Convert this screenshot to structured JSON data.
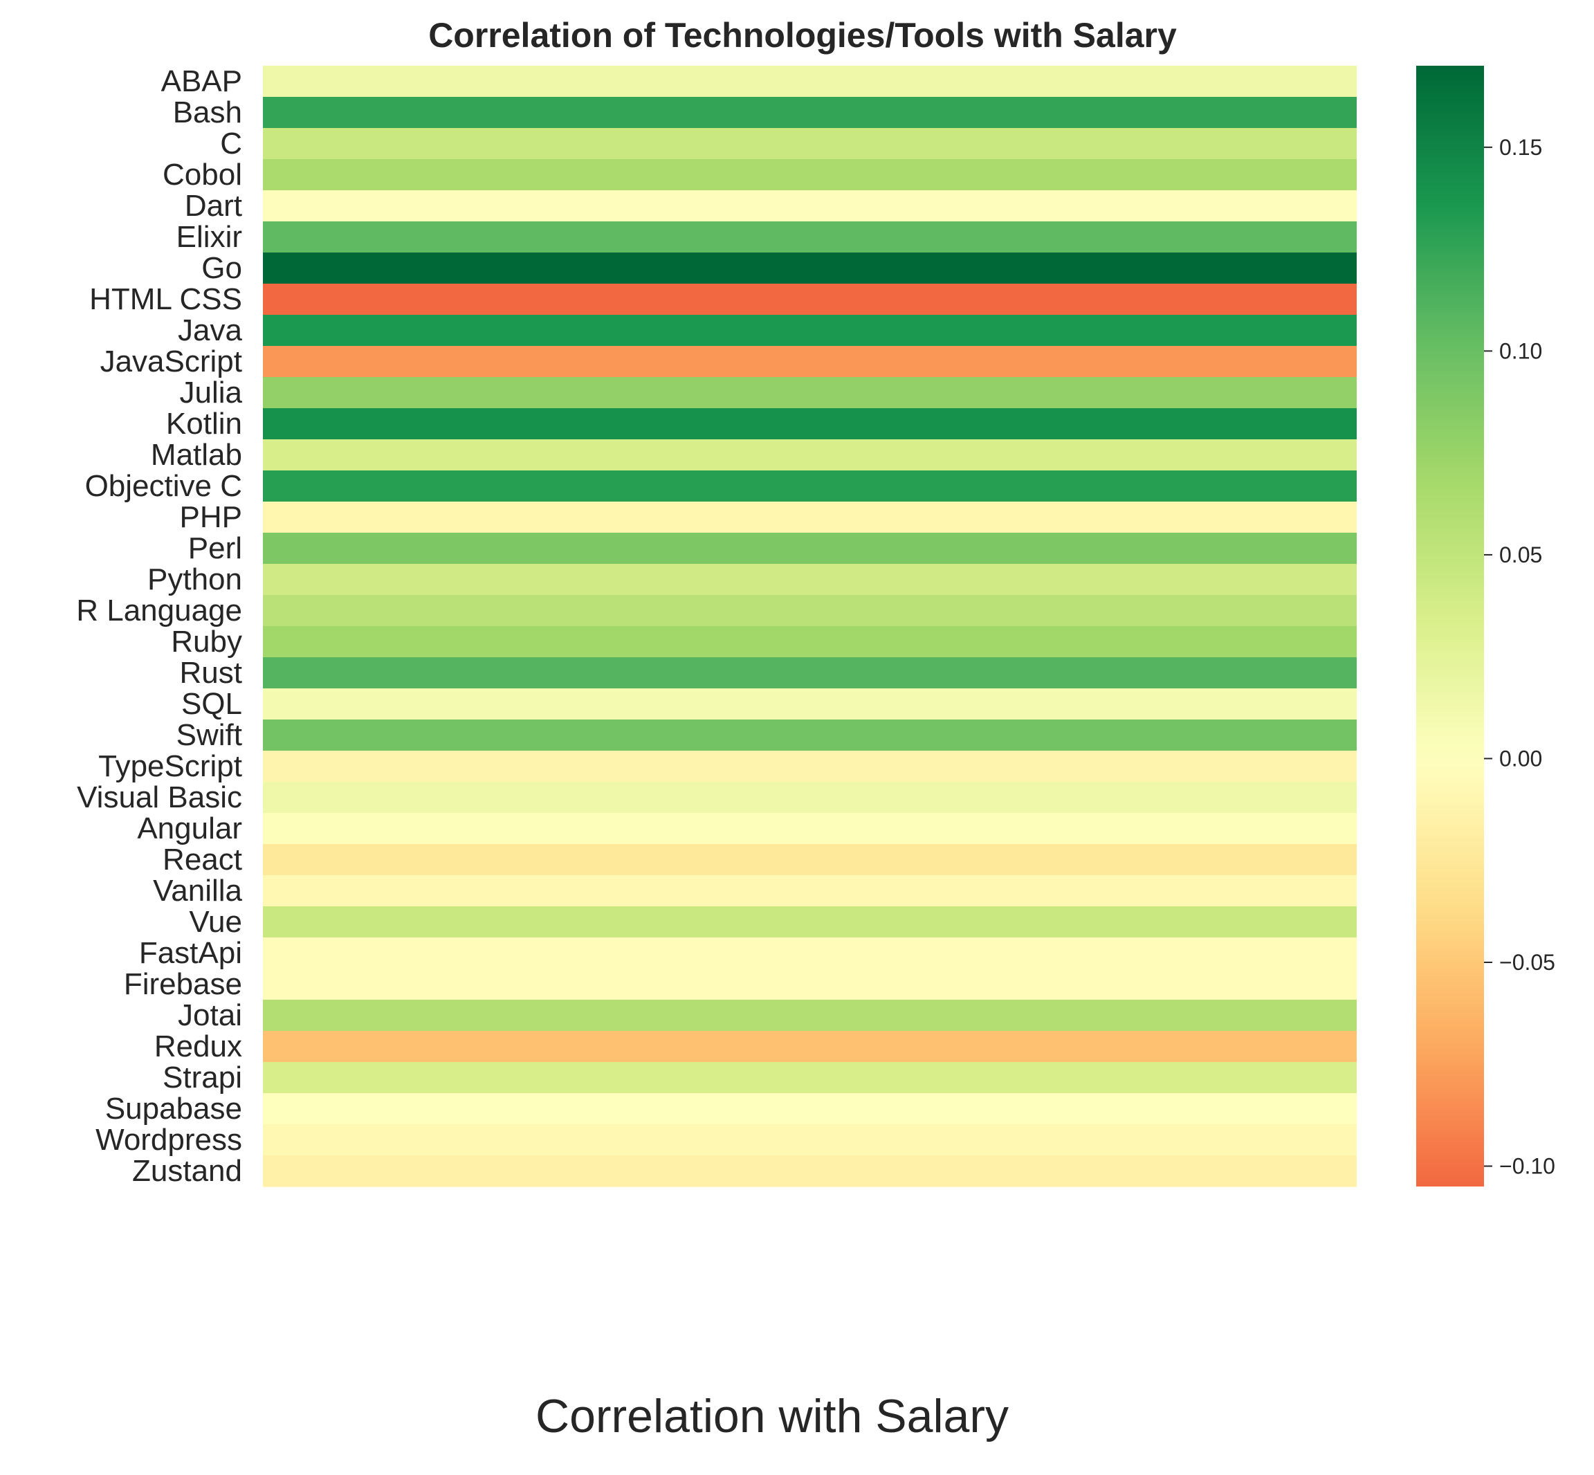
{
  "chart_data": {
    "type": "heatmap",
    "title": "Correlation of Technologies/Tools with Salary",
    "xlabel": "Correlation with Salary",
    "ylabel": "",
    "categories": [
      "ABAP",
      "Bash",
      "C",
      "Cobol",
      "Dart",
      "Elixir",
      "Go",
      "HTML CSS",
      "Java",
      "JavaScript",
      "Julia",
      "Kotlin",
      "Matlab",
      "Objective C",
      "PHP",
      "Perl",
      "Python",
      "R Language",
      "Ruby",
      "Rust",
      "SQL",
      "Swift",
      "TypeScript",
      "Visual Basic",
      "Angular",
      "React",
      "Vanilla",
      "Vue",
      "FastApi",
      "Firebase",
      "Jotai",
      "Redux",
      "Strapi",
      "Supabase",
      "Wordpress",
      "Zustand"
    ],
    "values": [
      0.015,
      0.125,
      0.045,
      0.065,
      -0.002,
      0.105,
      0.17,
      -0.105,
      0.135,
      -0.08,
      0.078,
      0.14,
      0.035,
      0.13,
      -0.01,
      0.09,
      0.04,
      0.055,
      0.07,
      0.11,
      0.01,
      0.095,
      -0.012,
      0.015,
      0.003,
      -0.025,
      -0.008,
      0.045,
      -0.004,
      -0.004,
      0.06,
      -0.055,
      0.035,
      0.001,
      -0.008,
      -0.015
    ],
    "colorbar": {
      "min": -0.105,
      "max": 0.17,
      "ticks": [
        0.15,
        0.1,
        0.05,
        0.0,
        -0.05,
        -0.1
      ],
      "tick_labels": [
        "0.15",
        "0.10",
        "0.05",
        "0.00",
        "−0.05",
        "−0.10"
      ],
      "colormap": "RdYlGn centered at 0"
    },
    "grid": false
  }
}
